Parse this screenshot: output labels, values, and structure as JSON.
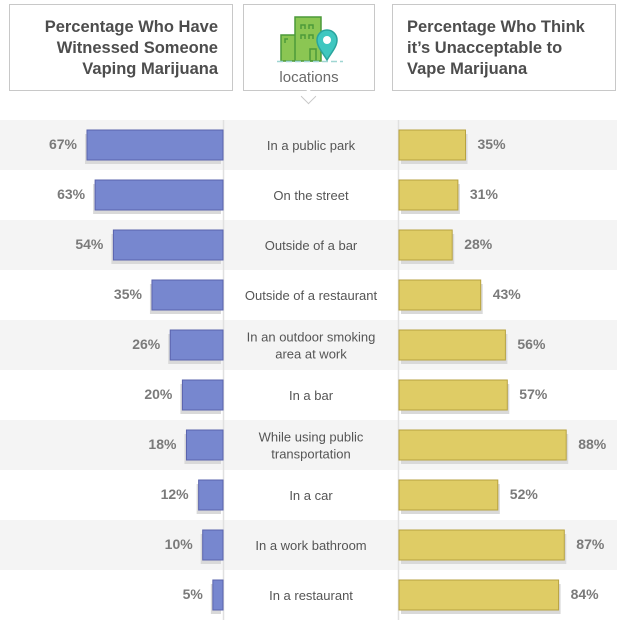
{
  "header": {
    "left_title_lines": [
      "Percentage Who Have",
      "Witnessed Someone",
      "Vaping Marijuana"
    ],
    "center_label": "locations",
    "center_icon": "buildings-with-location-pin-icon",
    "right_title_lines": [
      "Percentage Who Think",
      "it’s Unacceptable to",
      "Vape Marijuana"
    ]
  },
  "colors": {
    "witnessed_bar": "#7787cf",
    "witnessed_bar_border": "#5a63ad",
    "unacceptable_bar": "#dfcc65",
    "unacceptable_bar_border": "#b7a240",
    "row_shade": "#f4f4f4",
    "value_text": "#7a7a7a",
    "label_text": "#555555",
    "icon_green": "#8bc653",
    "icon_green_dark": "#4c9a3a",
    "icon_pin": "#3fc7c0"
  },
  "chart_data": {
    "type": "bar",
    "orientation": "horizontal-diverging",
    "title_left": "Percentage Who Have Witnessed Someone Vaping Marijuana",
    "title_right": "Percentage Who Think it’s Unacceptable to Vape Marijuana",
    "category_header": "locations",
    "categories": [
      [
        "In a public park"
      ],
      [
        "On the street"
      ],
      [
        "Outside of a bar"
      ],
      [
        "Outside of a restaurant"
      ],
      [
        "In an outdoor smoking",
        "area at work"
      ],
      [
        "In a bar"
      ],
      [
        "While using public",
        "transportation"
      ],
      [
        "In a car"
      ],
      [
        "In a work bathroom"
      ],
      [
        "In a restaurant"
      ]
    ],
    "series": [
      {
        "name": "Percentage Who Have Witnessed Someone Vaping Marijuana",
        "side": "left",
        "values": [
          67,
          63,
          54,
          35,
          26,
          20,
          18,
          12,
          10,
          5
        ],
        "labels": [
          "67%",
          "63%",
          "54%",
          "35%",
          "26%",
          "20%",
          "18%",
          "12%",
          "10%",
          "5%"
        ]
      },
      {
        "name": "Percentage Who Think it’s Unacceptable to Vape Marijuana",
        "side": "right",
        "values": [
          35,
          31,
          28,
          43,
          56,
          57,
          88,
          52,
          87,
          84
        ],
        "labels": [
          "35%",
          "31%",
          "28%",
          "43%",
          "56%",
          "57%",
          "88%",
          "52%",
          "87%",
          "84%"
        ]
      }
    ],
    "xlim": [
      0,
      100
    ],
    "unit": "%",
    "grid": false,
    "legend": "none"
  }
}
